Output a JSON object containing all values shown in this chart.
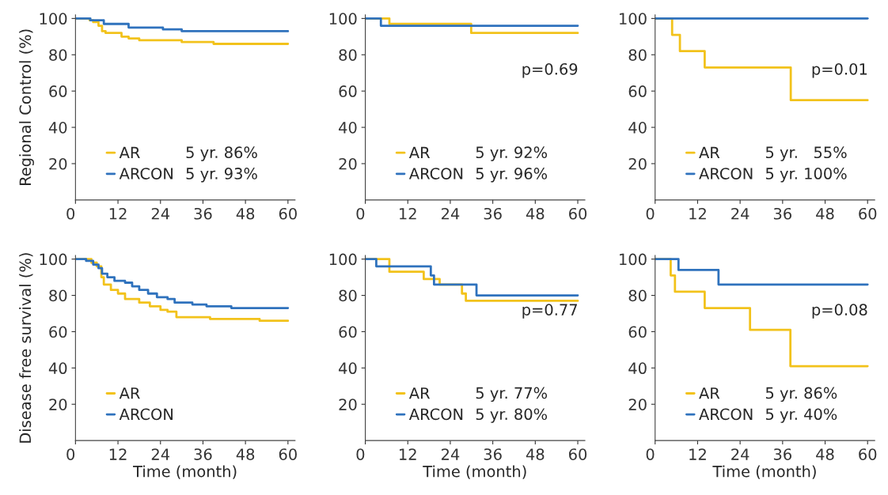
{
  "chart_data": [
    {
      "type": "step",
      "ylabel": "Regional Control (%)",
      "xlim": [
        0,
        62
      ],
      "ylim": [
        0,
        102
      ],
      "xticks": [
        0,
        12,
        24,
        36,
        48,
        60
      ],
      "yticks": [
        20,
        40,
        60,
        80,
        100
      ],
      "legend": "bottom left",
      "line_style": "solid",
      "annotations": [
        "5 yr. 86%",
        "5 yr. 93%"
      ],
      "series": [
        {
          "name": "AR",
          "color": "#f2c21b",
          "x": [
            0,
            4,
            5,
            6.5,
            7.5,
            8.5,
            13,
            15,
            18,
            30,
            39,
            60
          ],
          "values": [
            100,
            99,
            98,
            96,
            93,
            92,
            90,
            89,
            88,
            87,
            86,
            86
          ]
        },
        {
          "name": "ARCON",
          "color": "#2f72bd",
          "x": [
            0,
            4.2,
            8,
            15,
            24.7,
            30,
            60
          ],
          "values": [
            100,
            99,
            97,
            95,
            94,
            93,
            93
          ]
        }
      ]
    },
    {
      "type": "step",
      "xlim": [
        0,
        62
      ],
      "ylim": [
        0,
        102
      ],
      "xticks": [
        0,
        12,
        24,
        36,
        48,
        60
      ],
      "yticks": [
        20,
        40,
        60,
        80,
        100
      ],
      "legend": "bottom left",
      "line_style": "solid",
      "annotations": [
        "5 yr. 92%",
        "5 yr. 96%",
        "p=0.69"
      ],
      "series": [
        {
          "name": "AR",
          "color": "#f2c21b",
          "x": [
            0,
            6.8,
            29.9,
            60
          ],
          "values": [
            100,
            97,
            92,
            92
          ]
        },
        {
          "name": "ARCON",
          "color": "#2f72bd",
          "x": [
            0,
            4.4,
            60
          ],
          "values": [
            100,
            96,
            96
          ]
        }
      ]
    },
    {
      "type": "step",
      "xlim": [
        0,
        62
      ],
      "ylim": [
        0,
        102
      ],
      "xticks": [
        0,
        12,
        24,
        36,
        48,
        60
      ],
      "yticks": [
        20,
        40,
        60,
        80,
        100
      ],
      "legend": "bottom left",
      "line_style": "solid",
      "annotations": [
        "5 yr.   55%",
        "5 yr. 100%",
        "p=0.01"
      ],
      "series": [
        {
          "name": "AR",
          "color": "#f2c21b",
          "x": [
            0,
            4.8,
            7,
            14,
            38.3,
            60
          ],
          "values": [
            100,
            91,
            82,
            73,
            55,
            55
          ]
        },
        {
          "name": "ARCON",
          "color": "#2f72bd",
          "x": [
            0,
            60
          ],
          "values": [
            100,
            100
          ]
        }
      ]
    },
    {
      "type": "step",
      "ylabel": "Disease free survival (%)",
      "xlabel": "Time (month)",
      "xlim": [
        0,
        62
      ],
      "ylim": [
        0,
        102
      ],
      "xticks": [
        0,
        12,
        24,
        36,
        48,
        60
      ],
      "yticks": [
        20,
        40,
        60,
        80,
        100
      ],
      "legend": "bottom left",
      "line_style": "solid",
      "series": [
        {
          "name": "AR",
          "color": "#f2c21b",
          "x": [
            0,
            4.5,
            6,
            7.3,
            8,
            10,
            12,
            14,
            18,
            21,
            24,
            26,
            28.5,
            38,
            52,
            60
          ],
          "values": [
            100,
            98,
            96,
            90,
            86,
            83,
            81,
            78,
            76,
            74,
            72,
            71,
            68,
            67,
            66,
            66
          ]
        },
        {
          "name": "ARCON",
          "color": "#2f72bd",
          "x": [
            0,
            3,
            5,
            6.5,
            7.5,
            9,
            11,
            14,
            16,
            18,
            20.5,
            23,
            26,
            28,
            33,
            37,
            44,
            60
          ],
          "values": [
            100,
            99,
            97,
            95,
            92,
            90,
            88,
            87,
            85,
            83,
            81,
            79,
            78,
            76,
            75,
            74,
            73,
            73
          ]
        }
      ]
    },
    {
      "type": "step",
      "xlabel": "Time (month)",
      "xlim": [
        0,
        62
      ],
      "ylim": [
        0,
        102
      ],
      "xticks": [
        0,
        12,
        24,
        36,
        48,
        60
      ],
      "yticks": [
        20,
        40,
        60,
        80,
        100
      ],
      "legend": "bottom left",
      "line_style": "solid",
      "annotations": [
        "5 yr. 77%",
        "5 yr. 80%",
        "p=0.77"
      ],
      "series": [
        {
          "name": "AR",
          "color": "#f2c21b",
          "x": [
            0,
            6.8,
            16.5,
            21,
            27.3,
            28.4,
            60
          ],
          "values": [
            100,
            93,
            89,
            86,
            81,
            77,
            77
          ]
        },
        {
          "name": "ARCON",
          "color": "#2f72bd",
          "x": [
            0,
            3.1,
            18.5,
            19.4,
            31.4,
            60
          ],
          "values": [
            100,
            96,
            91,
            86,
            80,
            80
          ]
        }
      ]
    },
    {
      "type": "step",
      "xlabel": "Time (month)",
      "xlim": [
        0,
        62
      ],
      "ylim": [
        0,
        102
      ],
      "xticks": [
        0,
        12,
        24,
        36,
        48,
        60
      ],
      "yticks": [
        20,
        40,
        60,
        80,
        100
      ],
      "legend": "bottom left",
      "line_style": "solid",
      "annotations": [
        "5 yr. 86%",
        "5 yr. 40%",
        "p=0.08"
      ],
      "series": [
        {
          "name": "AR",
          "color": "#f2c21b",
          "x": [
            0,
            4.4,
            5.6,
            14,
            26.8,
            38.2,
            60
          ],
          "values": [
            100,
            91,
            82,
            73,
            61,
            41,
            41
          ]
        },
        {
          "name": "ARCON",
          "color": "#2f72bd",
          "x": [
            0,
            6.6,
            17.9,
            60
          ],
          "values": [
            100,
            94,
            86,
            86
          ]
        }
      ]
    }
  ]
}
